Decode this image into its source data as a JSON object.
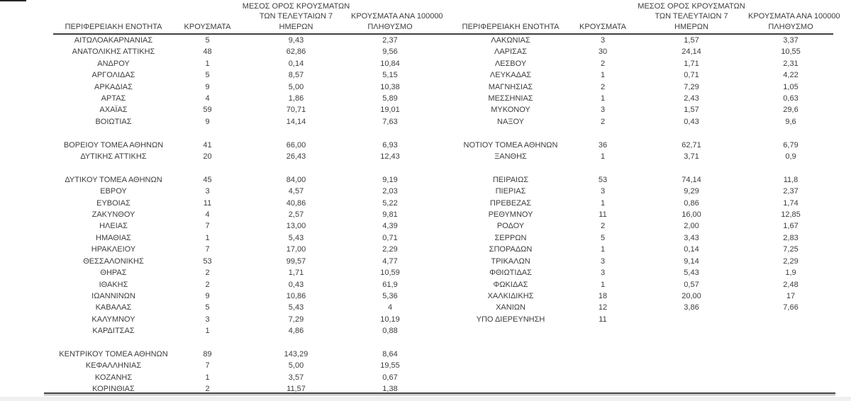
{
  "page": {
    "kind": "regional-units-cases-table",
    "text_color": "#3d3d3d",
    "rule_color": "#3f3f3f",
    "background": "#ffffff"
  },
  "table": {
    "header": {
      "region": "ΠΕΡΙΦΕΡΕΙΑΚΗ ΕΝΟΤΗΤΑ",
      "cases": "ΚΡΟΥΣΜΑΤΑ",
      "avg7_line1": "ΜΕΣΟΣ ΟΡΟΣ ΚΡΟΥΣΜΑΤΩΝ",
      "avg7_line2": "ΤΩΝ ΤΕΛΕΥΤΑΙΩΝ 7",
      "avg7_line3": "ΗΜΕΡΩΝ",
      "per100k_line1": "ΚΡΟΥΣΜΑΤΑ ΑΝΑ 100000",
      "per100k_line2": "ΠΛΗΘΥΣΜΟ"
    },
    "rows": [
      [
        "ΑΙΤΩΛΟΑΚΑΡΝΑΝΙΑΣ",
        "5",
        "9,43",
        "2,37",
        "ΛΑΚΩΝΙΑΣ",
        "3",
        "1,57",
        "3,37"
      ],
      [
        "ΑΝΑΤΟΛΙΚΗΣ ΑΤΤΙΚΗΣ",
        "48",
        "62,86",
        "9,56",
        "ΛΑΡΙΣΑΣ",
        "30",
        "24,14",
        "10,55"
      ],
      [
        "ΑΝΔΡΟΥ",
        "1",
        "0,14",
        "10,84",
        "ΛΕΣΒΟΥ",
        "2",
        "1,71",
        "2,31"
      ],
      [
        "ΑΡΓΟΛΙΔΑΣ",
        "5",
        "8,57",
        "5,15",
        "ΛΕΥΚΑΔΑΣ",
        "1",
        "0,71",
        "4,22"
      ],
      [
        "ΑΡΚΑΔΙΑΣ",
        "9",
        "5,00",
        "10,38",
        "ΜΑΓΝΗΣΙΑΣ",
        "2",
        "7,29",
        "1,05"
      ],
      [
        "ΑΡΤΑΣ",
        "4",
        "1,86",
        "5,89",
        "ΜΕΣΣΗΝΙΑΣ",
        "1",
        "2,43",
        "0,63"
      ],
      [
        "ΑΧΑΪΑΣ",
        "59",
        "70,71",
        "19,01",
        "ΜΥΚΟΝΟΥ",
        "3",
        "1,57",
        "29,6"
      ],
      [
        "ΒΟΙΩΤΙΑΣ",
        "9",
        "14,14",
        "7,63",
        "ΝΑΞΟΥ",
        "2",
        "0,43",
        "9,6"
      ],
      [
        "",
        "",
        "",
        "",
        "",
        "",
        "",
        ""
      ],
      [
        "ΒΟΡΕΙΟΥ ΤΟΜΕΑ ΑΘΗΝΩΝ",
        "41",
        "66,00",
        "6,93",
        "ΝΟΤΙΟΥ ΤΟΜΕΑ ΑΘΗΝΩΝ",
        "36",
        "62,71",
        "6,79"
      ],
      [
        "ΔΥΤΙΚΗΣ ΑΤΤΙΚΗΣ",
        "20",
        "26,43",
        "12,43",
        "ΞΑΝΘΗΣ",
        "1",
        "3,71",
        "0,9"
      ],
      [
        "",
        "",
        "",
        "",
        "",
        "",
        "",
        ""
      ],
      [
        "ΔΥΤΙΚΟΥ ΤΟΜΕΑ ΑΘΗΝΩΝ",
        "45",
        "84,00",
        "9,19",
        "ΠΕΙΡΑΙΩΣ",
        "53",
        "74,14",
        "11,8"
      ],
      [
        "ΕΒΡΟΥ",
        "3",
        "4,57",
        "2,03",
        "ΠΙΕΡΙΑΣ",
        "3",
        "9,29",
        "2,37"
      ],
      [
        "ΕΥΒΟΙΑΣ",
        "11",
        "40,86",
        "5,22",
        "ΠΡΕΒΕΖΑΣ",
        "1",
        "0,86",
        "1,74"
      ],
      [
        "ΖΑΚΥΝΘΟΥ",
        "4",
        "2,57",
        "9,81",
        "ΡΕΘΥΜΝΟΥ",
        "11",
        "16,00",
        "12,85"
      ],
      [
        "ΗΛΕΙΑΣ",
        "7",
        "13,00",
        "4,39",
        "ΡΟΔΟΥ",
        "2",
        "2,00",
        "1,67"
      ],
      [
        "ΗΜΑΘΙΑΣ",
        "1",
        "5,43",
        "0,71",
        "ΣΕΡΡΩΝ",
        "5",
        "3,43",
        "2,83"
      ],
      [
        "ΗΡΑΚΛΕΙΟΥ",
        "7",
        "17,00",
        "2,29",
        "ΣΠΟΡΑΔΩΝ",
        "1",
        "0,14",
        "7,25"
      ],
      [
        "ΘΕΣΣΑΛΟΝΙΚΗΣ",
        "53",
        "99,57",
        "4,77",
        "ΤΡΙΚΑΛΩΝ",
        "3",
        "9,14",
        "2,29"
      ],
      [
        "ΘΗΡΑΣ",
        "2",
        "1,71",
        "10,59",
        "ΦΘΙΩΤΙΔΑΣ",
        "3",
        "5,43",
        "1,9"
      ],
      [
        "ΙΘΑΚΗΣ",
        "2",
        "0,43",
        "61,9",
        "ΦΩΚΙΔΑΣ",
        "1",
        "0,57",
        "2,48"
      ],
      [
        "ΙΩΑΝΝΙΝΩΝ",
        "9",
        "10,86",
        "5,36",
        "ΧΑΛΚΙΔΙΚΗΣ",
        "18",
        "20,00",
        "17"
      ],
      [
        "ΚΑΒΑΛΑΣ",
        "5",
        "5,43",
        "4",
        "ΧΑΝΙΩΝ",
        "12",
        "3,86",
        "7,66"
      ],
      [
        "ΚΑΛΥΜΝΟΥ",
        "3",
        "7,29",
        "10,19",
        "ΥΠΟ ΔΙΕΡΕΥΝΗΣΗ",
        "11",
        "",
        ""
      ],
      [
        "ΚΑΡΔΙΤΣΑΣ",
        "1",
        "4,86",
        "0,88",
        "",
        "",
        "",
        ""
      ],
      [
        "",
        "",
        "",
        "",
        "",
        "",
        "",
        ""
      ],
      [
        "ΚΕΝΤΡΙΚΟΥ ΤΟΜΕΑ ΑΘΗΝΩΝ",
        "89",
        "143,29",
        "8,64",
        "",
        "",
        "",
        ""
      ],
      [
        "ΚΕΦΑΛΛΗΝΙΑΣ",
        "7",
        "5,00",
        "19,55",
        "",
        "",
        "",
        ""
      ],
      [
        "ΚΟΖΑΝΗΣ",
        "1",
        "3,57",
        "0,67",
        "",
        "",
        "",
        ""
      ],
      [
        "ΚΟΡΙΝΘΙΑΣ",
        "2",
        "11,57",
        "1,38",
        "",
        "",
        "",
        ""
      ]
    ]
  }
}
